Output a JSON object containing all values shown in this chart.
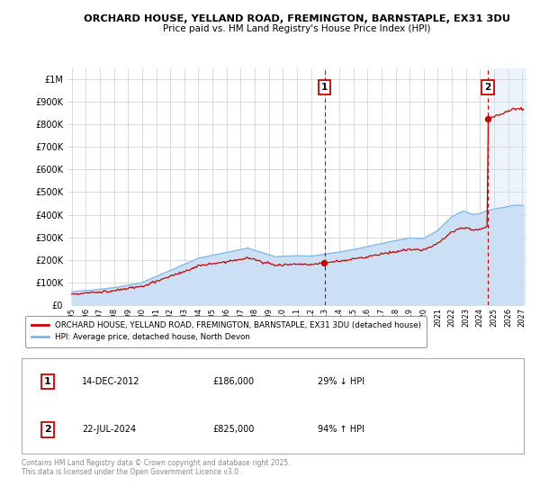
{
  "title1": "ORCHARD HOUSE, YELLAND ROAD, FREMINGTON, BARNSTAPLE, EX31 3DU",
  "title2": "Price paid vs. HM Land Registry's House Price Index (HPI)",
  "yticks": [
    0,
    100000,
    200000,
    300000,
    400000,
    500000,
    600000,
    700000,
    800000,
    900000,
    1000000
  ],
  "ytick_labels": [
    "£0",
    "£100K",
    "£200K",
    "£300K",
    "£400K",
    "£500K",
    "£600K",
    "£700K",
    "£800K",
    "£900K",
    "£1M"
  ],
  "xlim_start": 1994.7,
  "xlim_end": 2027.3,
  "ylim_min": 0,
  "ylim_max": 1050000,
  "hpi_color": "#7ab8e8",
  "hpi_fill_color": "#cce0f5",
  "price_color": "#cc0000",
  "dashed_color": "#cc0000",
  "marker1_year": 2012.958,
  "marker2_year": 2024.556,
  "marker1_price": 186000,
  "marker2_price": 825000,
  "transaction1": {
    "label": "1",
    "date": "14-DEC-2012",
    "price": 186000,
    "hpi_pct": "29%",
    "direction": "↓"
  },
  "transaction2": {
    "label": "2",
    "date": "22-JUL-2024",
    "price": 825000,
    "hpi_pct": "94%",
    "direction": "↑"
  },
  "legend_line1": "ORCHARD HOUSE, YELLAND ROAD, FREMINGTON, BARNSTAPLE, EX31 3DU (detached house)",
  "legend_line2": "HPI: Average price, detached house, North Devon",
  "footnote": "Contains HM Land Registry data © Crown copyright and database right 2025.\nThis data is licensed under the Open Government Licence v3.0.",
  "background_color": "#ffffff",
  "grid_color": "#cccccc"
}
